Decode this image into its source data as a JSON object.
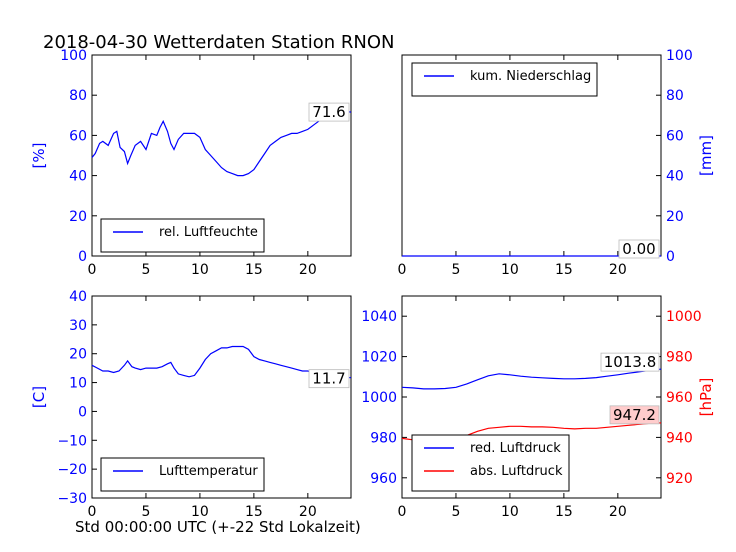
{
  "page_title": "2018-04-30 Wetterdaten Station RNON",
  "footer_xlabel": "Std 00:00:00 UTC (+-22 Std Lokalzeit)",
  "colors": {
    "blue": "#0000ff",
    "red": "#ff0000",
    "annot_bg": "#ffcccc"
  },
  "chart_data": [
    {
      "type": "line",
      "id": "humidity",
      "ylabel": "[%]",
      "xlim": [
        0,
        24
      ],
      "ylim": [
        0,
        100
      ],
      "xticks": [
        0,
        5,
        10,
        15,
        20
      ],
      "yticks": [
        0,
        20,
        40,
        60,
        80,
        100
      ],
      "legend": "lower-left",
      "series": [
        {
          "name": "rel. Luftfeuchte",
          "color": "#0000ff",
          "x": [
            0,
            0.3,
            0.7,
            1.0,
            1.5,
            2.0,
            2.3,
            2.6,
            3.0,
            3.3,
            3.6,
            4.0,
            4.5,
            5.0,
            5.5,
            6.0,
            6.3,
            6.6,
            7.0,
            7.3,
            7.6,
            8.0,
            8.5,
            9.0,
            9.5,
            10.0,
            10.5,
            11.0,
            11.5,
            12.0,
            12.5,
            13.0,
            13.5,
            14.0,
            14.5,
            15.0,
            15.5,
            16.0,
            16.5,
            17.0,
            17.5,
            18.0,
            18.5,
            19.0,
            19.5,
            20.0,
            20.5,
            21.0,
            21.5,
            22.0,
            22.5,
            23.0,
            23.5,
            24.0
          ],
          "y": [
            49,
            51,
            56,
            57,
            55,
            61,
            62,
            54,
            52,
            46,
            50,
            55,
            57,
            53,
            61,
            60,
            64,
            67,
            62,
            56,
            53,
            58,
            61,
            61,
            61,
            59,
            53,
            50,
            47,
            44,
            42,
            41,
            40,
            40,
            41,
            43,
            47,
            51,
            55,
            57,
            59,
            60,
            61,
            61,
            62,
            63,
            65,
            67,
            69,
            70,
            71,
            73,
            72,
            71.6
          ]
        }
      ],
      "annotation": "71.6"
    },
    {
      "type": "line",
      "id": "precip",
      "ylabel": "[mm]",
      "xlim": [
        0,
        24
      ],
      "ylim": [
        0,
        100
      ],
      "xticks": [
        0,
        5,
        10,
        15,
        20
      ],
      "yticks": [
        0,
        20,
        40,
        60,
        80,
        100
      ],
      "legend": "upper-left",
      "series": [
        {
          "name": "kum. Niederschlag",
          "color": "#0000ff",
          "x": [
            0,
            24
          ],
          "y": [
            0,
            0
          ]
        }
      ],
      "annotation": "0.00"
    },
    {
      "type": "line",
      "id": "temperature",
      "ylabel": "[C]",
      "xlim": [
        0,
        24
      ],
      "ylim": [
        -30,
        40
      ],
      "xticks": [
        0,
        5,
        10,
        15,
        20
      ],
      "yticks": [
        -30,
        -20,
        -10,
        0,
        10,
        20,
        30,
        40
      ],
      "legend": "lower-left",
      "series": [
        {
          "name": "Lufttemperatur",
          "color": "#0000ff",
          "x": [
            0,
            0.5,
            1.0,
            1.5,
            2.0,
            2.5,
            3.0,
            3.3,
            3.7,
            4.0,
            4.5,
            5.0,
            5.5,
            6.0,
            6.5,
            7.0,
            7.3,
            7.6,
            8.0,
            8.5,
            9.0,
            9.5,
            10.0,
            10.5,
            11.0,
            11.5,
            12.0,
            12.5,
            13.0,
            13.5,
            14.0,
            14.5,
            15.0,
            15.5,
            16.0,
            16.5,
            17.0,
            17.5,
            18.0,
            18.5,
            19.0,
            19.5,
            20.0,
            20.5,
            21.0,
            21.5,
            22.0,
            22.5,
            23.0,
            23.5,
            24.0
          ],
          "y": [
            16,
            15,
            14,
            14,
            13.5,
            14,
            16,
            17.5,
            15.5,
            15,
            14.5,
            15,
            15,
            15,
            15.5,
            16.5,
            17,
            15,
            13,
            12.5,
            12,
            12.5,
            15,
            18,
            20,
            21,
            22,
            22,
            22.5,
            22.5,
            22.5,
            21.5,
            19,
            18,
            17.5,
            17,
            16.5,
            16,
            15.5,
            15,
            14.5,
            14,
            14,
            13.5,
            13,
            12.5,
            12,
            12,
            11.8,
            11.8,
            11.7
          ]
        }
      ],
      "annotation": "11.7"
    },
    {
      "type": "line",
      "id": "pressure",
      "ylabel_right": "[hPa]",
      "xlim": [
        0,
        24
      ],
      "ylim_left": [
        950,
        1050
      ],
      "ylim_right": [
        910,
        1010
      ],
      "xticks": [
        0,
        5,
        10,
        15,
        20
      ],
      "yticks_left": [
        960,
        980,
        1000,
        1020,
        1040
      ],
      "yticks_right": [
        920,
        940,
        960,
        980,
        1000
      ],
      "legend": "lower-left",
      "series": [
        {
          "name": "red. Luftdruck",
          "color": "#0000ff",
          "axis": "left",
          "x": [
            0,
            1,
            2,
            3,
            4,
            5,
            6,
            7,
            8,
            9,
            10,
            11,
            12,
            13,
            14,
            15,
            16,
            17,
            18,
            19,
            20,
            21,
            22,
            23,
            24
          ],
          "y": [
            1004.8,
            1004.5,
            1004,
            1004,
            1004.2,
            1004.8,
            1006.5,
            1008.5,
            1010.5,
            1011.5,
            1011,
            1010.3,
            1009.8,
            1009.5,
            1009.2,
            1009,
            1009,
            1009.2,
            1009.6,
            1010.3,
            1011,
            1011.8,
            1012.5,
            1013.2,
            1013.8
          ]
        },
        {
          "name": "abs. Luftdruck",
          "color": "#ff0000",
          "axis": "right",
          "x": [
            0,
            1,
            2,
            3,
            4,
            5,
            6,
            7,
            8,
            9,
            10,
            11,
            12,
            13,
            14,
            15,
            16,
            17,
            18,
            19,
            20,
            21,
            22,
            23,
            24
          ],
          "y": [
            939.5,
            938.8,
            938.5,
            938.5,
            939,
            939.5,
            941,
            943,
            944.5,
            945,
            945.5,
            945.5,
            945.2,
            945.2,
            945,
            944.5,
            944.2,
            944.5,
            944.5,
            945,
            945.5,
            946,
            946.5,
            947,
            947.2
          ]
        }
      ],
      "annotation_left": "1013.8",
      "annotation_right": "947.2"
    }
  ]
}
